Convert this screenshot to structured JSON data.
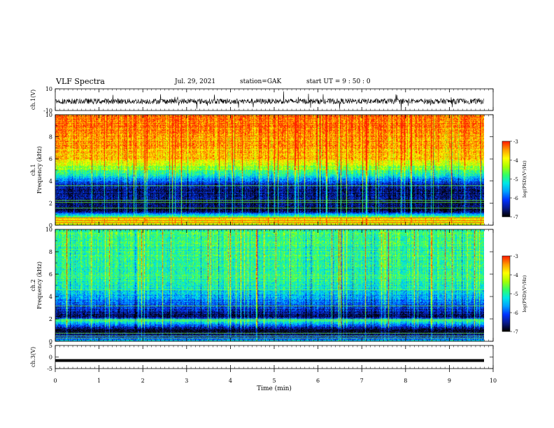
{
  "header": {
    "title": "VLF Spectra",
    "date": "Jul. 29, 2021",
    "station": "station=GAK",
    "start": "start UT = 9 : 50 : 0"
  },
  "colors": {
    "colormap": [
      "#000000",
      "#0a1a8c",
      "#0033ff",
      "#00a0ff",
      "#00e8e8",
      "#33ff66",
      "#a8ff00",
      "#ffff00",
      "#ffa000",
      "#ff2000",
      "#ffffff"
    ],
    "trace": "#000000"
  },
  "chart_data": [
    {
      "type": "line",
      "name": "ch1-waveform",
      "ylabel": "ch.1(V)",
      "ylim": [
        -10,
        10
      ],
      "yticks": [
        "10",
        "-10"
      ],
      "xlim": [
        0,
        9.83
      ],
      "trace_mean": -1.5,
      "trace_amplitude": 2.5
    },
    {
      "type": "heatmap",
      "name": "ch1-spectrogram",
      "ylabel": "ch.1 Frequency (kHz)",
      "ylim": [
        0,
        10
      ],
      "yticks": [
        "0",
        "2",
        "4",
        "6",
        "8",
        "10"
      ],
      "xlim": [
        0,
        9.83
      ],
      "colorbar": {
        "label": "log(PSD)(V²/Hz)",
        "range": [
          -7,
          -3
        ],
        "ticks": [
          "-3",
          "-4",
          "-5",
          "-6",
          "-7"
        ]
      },
      "profile_khz": [
        {
          "f": 0.0,
          "level": -4.2
        },
        {
          "f": 0.6,
          "level": -3.8
        },
        {
          "f": 0.9,
          "level": -5.0
        },
        {
          "f": 1.3,
          "level": -6.8
        },
        {
          "f": 3.5,
          "level": -6.5
        },
        {
          "f": 4.3,
          "level": -5.5
        },
        {
          "f": 5.0,
          "level": -4.6
        },
        {
          "f": 6.0,
          "level": -3.6
        },
        {
          "f": 10.0,
          "level": -3.2
        }
      ]
    },
    {
      "type": "heatmap",
      "name": "ch2-spectrogram",
      "ylabel": "ch.2 Frequency (kHz)",
      "ylim": [
        0,
        10
      ],
      "yticks": [
        "0",
        "2",
        "4",
        "6",
        "8",
        "10"
      ],
      "xlim": [
        0,
        9.83
      ],
      "colorbar": {
        "label": "log(PSD)(V²/Hz)",
        "range": [
          -7,
          -3
        ],
        "ticks": [
          "-3",
          "-4",
          "-5",
          "-6",
          "-7"
        ]
      },
      "profile_khz": [
        {
          "f": 0.0,
          "level": -5.3
        },
        {
          "f": 0.5,
          "level": -6.5
        },
        {
          "f": 1.0,
          "level": -7.0
        },
        {
          "f": 1.9,
          "level": -5.0
        },
        {
          "f": 2.2,
          "level": -6.8
        },
        {
          "f": 3.0,
          "level": -6.2
        },
        {
          "f": 3.8,
          "level": -5.6
        },
        {
          "f": 5.0,
          "level": -5.0
        },
        {
          "f": 10.0,
          "level": -4.8
        }
      ]
    },
    {
      "type": "line",
      "name": "ch3-waveform",
      "ylabel": "ch.3(V)",
      "ylim": [
        -5,
        5
      ],
      "yticks": [
        "5",
        "0",
        "-5"
      ],
      "xlim": [
        0,
        9.83
      ],
      "trace_mean": -1.5
    }
  ],
  "x_axis": {
    "label": "Time (min)",
    "range": [
      0,
      10
    ],
    "ticks": [
      "0",
      "1",
      "2",
      "3",
      "4",
      "5",
      "6",
      "7",
      "8",
      "9",
      "10"
    ]
  }
}
